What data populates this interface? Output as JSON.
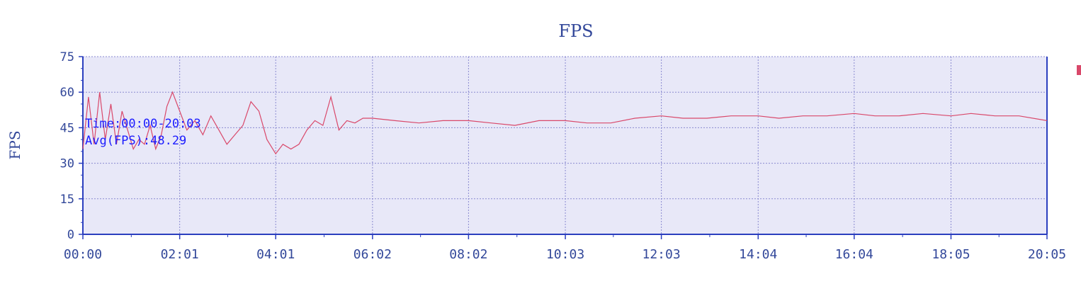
{
  "chart_data": {
    "type": "line",
    "title": "FPS",
    "xlabel": "",
    "ylabel": "FPS",
    "xlim": [
      "00:00",
      "20:05"
    ],
    "ylim": [
      0,
      75
    ],
    "yticks": [
      "0",
      "15",
      "30",
      "45",
      "60",
      "75"
    ],
    "xticks": [
      "00:00",
      "02:01",
      "04:01",
      "06:02",
      "08:02",
      "10:03",
      "12:03",
      "14:04",
      "16:04",
      "18:05",
      "20:05"
    ],
    "grid": true,
    "annotations": [
      "Time:00:00-20:03",
      "Avg(FPS):48.29"
    ],
    "colors": {
      "series": "#d9486a",
      "plot_bg": "#e8e8f8",
      "axis": "#2b3fbf",
      "grid": "#8a8ad0"
    },
    "series": [
      {
        "x": [
          "00:00",
          "00:07",
          "00:14",
          "00:21",
          "00:28",
          "00:35",
          "00:42",
          "00:49",
          "00:56",
          "01:03",
          "01:10",
          "01:17",
          "01:24",
          "01:31",
          "01:38",
          "01:45",
          "01:52",
          "02:01",
          "02:10",
          "02:20",
          "02:30",
          "02:40",
          "02:50",
          "03:00",
          "03:10",
          "03:20",
          "03:30",
          "03:40",
          "03:50",
          "04:01",
          "04:10",
          "04:20",
          "04:30",
          "04:40",
          "04:50",
          "05:00",
          "05:10",
          "05:20",
          "05:30",
          "05:40",
          "05:50",
          "06:02",
          "06:30",
          "07:00",
          "07:30",
          "08:02",
          "08:30",
          "09:00",
          "09:30",
          "10:03",
          "10:30",
          "11:00",
          "11:30",
          "12:03",
          "12:30",
          "13:00",
          "13:30",
          "14:04",
          "14:30",
          "15:00",
          "15:30",
          "16:04",
          "16:30",
          "17:00",
          "17:30",
          "18:05",
          "18:30",
          "19:00",
          "19:30",
          "20:05"
        ],
        "values": [
          36,
          58,
          38,
          60,
          40,
          55,
          38,
          52,
          44,
          36,
          40,
          38,
          46,
          36,
          42,
          54,
          60,
          52,
          44,
          48,
          42,
          50,
          44,
          38,
          42,
          46,
          56,
          52,
          40,
          34,
          38,
          36,
          38,
          44,
          48,
          46,
          58,
          44,
          48,
          47,
          49,
          49,
          48,
          47,
          48,
          48,
          47,
          46,
          48,
          48,
          47,
          47,
          49,
          50,
          49,
          49,
          50,
          50,
          49,
          50,
          50,
          51,
          50,
          50,
          51,
          50,
          51,
          50,
          50,
          48
        ]
      }
    ]
  }
}
